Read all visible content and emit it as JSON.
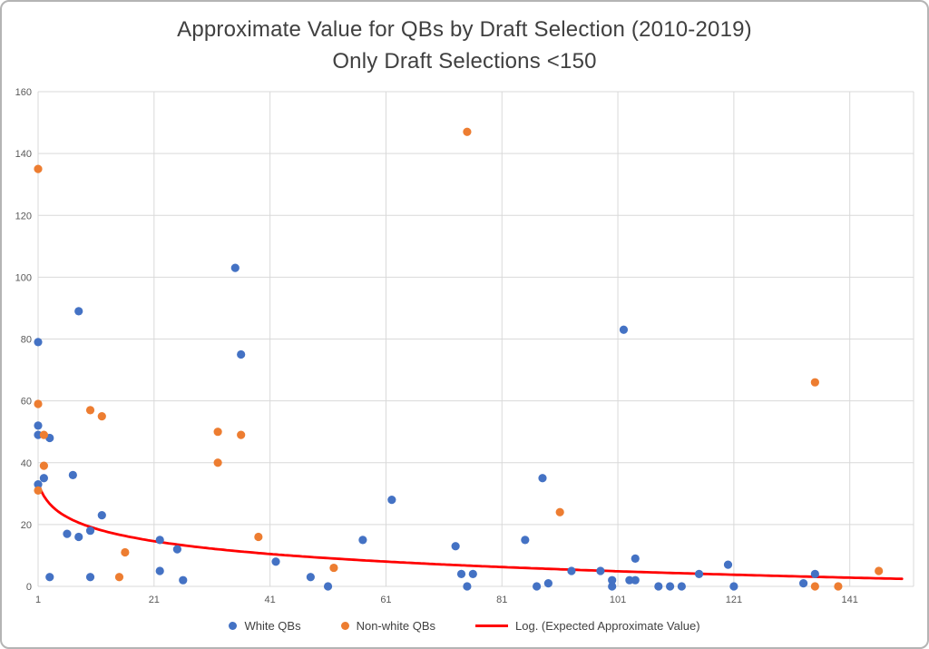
{
  "window": {
    "background": "#ffffff",
    "border_color": "#b4b4b4"
  },
  "chart_data": {
    "type": "scatter",
    "title": "Approximate Value for QBs by Draft Selection (2010-2019)",
    "subtitle": "Only Draft Selections <150",
    "xlabel": "",
    "ylabel": "",
    "xlim": [
      1,
      152
    ],
    "ylim": [
      0,
      160
    ],
    "x_ticks": [
      1,
      21,
      41,
      61,
      81,
      101,
      121,
      141
    ],
    "y_ticks": [
      0,
      20,
      40,
      60,
      80,
      100,
      120,
      140,
      160
    ],
    "grid": true,
    "gridline_color": "#d9d9d9",
    "tick_label_color": "#595959",
    "legend_position": "bottom",
    "series": [
      {
        "name": "White QBs",
        "color": "#4472C4",
        "points": [
          [
            1,
            79
          ],
          [
            1,
            52
          ],
          [
            1,
            49
          ],
          [
            1,
            33
          ],
          [
            2,
            35
          ],
          [
            3,
            48
          ],
          [
            3,
            3
          ],
          [
            6,
            17
          ],
          [
            7,
            36
          ],
          [
            8,
            89
          ],
          [
            8,
            16
          ],
          [
            10,
            18
          ],
          [
            10,
            3
          ],
          [
            12,
            23
          ],
          [
            22,
            15
          ],
          [
            22,
            5
          ],
          [
            25,
            12
          ],
          [
            26,
            2
          ],
          [
            35,
            103
          ],
          [
            36,
            75
          ],
          [
            42,
            8
          ],
          [
            48,
            3
          ],
          [
            51,
            0
          ],
          [
            57,
            15
          ],
          [
            62,
            28
          ],
          [
            73,
            13
          ],
          [
            74,
            4
          ],
          [
            75,
            0
          ],
          [
            76,
            4
          ],
          [
            85,
            15
          ],
          [
            87,
            0
          ],
          [
            88,
            35
          ],
          [
            89,
            1
          ],
          [
            93,
            5
          ],
          [
            98,
            5
          ],
          [
            100,
            2
          ],
          [
            100,
            0
          ],
          [
            102,
            83
          ],
          [
            103,
            2
          ],
          [
            104,
            9
          ],
          [
            104,
            2
          ],
          [
            108,
            0
          ],
          [
            110,
            0
          ],
          [
            112,
            0
          ],
          [
            115,
            4
          ],
          [
            120,
            7
          ],
          [
            121,
            0
          ],
          [
            133,
            1
          ],
          [
            135,
            4
          ]
        ]
      },
      {
        "name": "Non-white QBs",
        "color": "#ED7D31",
        "points": [
          [
            1,
            135
          ],
          [
            1,
            59
          ],
          [
            1,
            31
          ],
          [
            2,
            49
          ],
          [
            2,
            39
          ],
          [
            10,
            57
          ],
          [
            12,
            55
          ],
          [
            15,
            3
          ],
          [
            16,
            11
          ],
          [
            32,
            50
          ],
          [
            32,
            40
          ],
          [
            36,
            49
          ],
          [
            39,
            16
          ],
          [
            52,
            6
          ],
          [
            75,
            147
          ],
          [
            91,
            24
          ],
          [
            135,
            66
          ],
          [
            135,
            0
          ],
          [
            139,
            0
          ],
          [
            146,
            5
          ]
        ]
      }
    ],
    "trendline": {
      "name": "Log. (Expected Approximate Value)",
      "color": "#FF0000",
      "form": "y = a - b*ln(x)",
      "a": 33.5,
      "b": 6.2,
      "x_range": [
        1,
        150
      ]
    }
  }
}
